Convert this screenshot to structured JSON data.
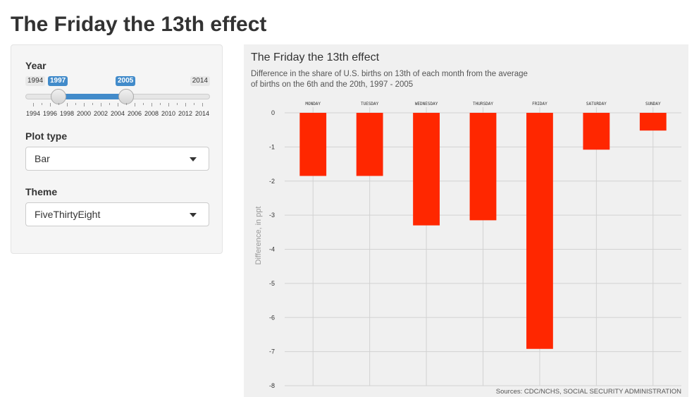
{
  "page": {
    "title": "The Friday the 13th effect"
  },
  "sidebar": {
    "year": {
      "label": "Year",
      "min": 1994,
      "max": 2014,
      "from": 1997,
      "to": 2005,
      "min_label": "1994",
      "max_label": "2014",
      "from_label": "1997",
      "to_label": "2005",
      "tick_labels": [
        "1994",
        "1996",
        "1998",
        "2000",
        "2002",
        "2004",
        "2006",
        "2008",
        "2010",
        "2012",
        "2014"
      ]
    },
    "plot_type": {
      "label": "Plot type",
      "value": "Bar"
    },
    "theme": {
      "label": "Theme",
      "value": "FiveThirtyEight"
    }
  },
  "chart_data": {
    "type": "bar",
    "title": "The Friday the 13th effect",
    "subtitle_line1": "Difference in the share of U.S. births on 13th of each month from the average",
    "subtitle_line2": "of births on the 6th and the 20th, 1997 - 2005",
    "ylabel": "Difference, in ppt",
    "xlabel": "",
    "source": "Sources: CDC/NCHS, SOCIAL SECURITY ADMINISTRATION",
    "categories": [
      "Monday",
      "Tuesday",
      "Wednesday",
      "Thursday",
      "Friday",
      "Saturday",
      "Sunday"
    ],
    "values": [
      -1.85,
      -1.85,
      -3.3,
      -3.15,
      -6.92,
      -1.08,
      -0.52
    ],
    "ylim": [
      -8,
      0
    ],
    "yticks": [
      "0",
      "-1",
      "-2",
      "-3",
      "-4",
      "-5",
      "-6",
      "-7",
      "-8"
    ],
    "grid": true,
    "bar_color": "#ff2700",
    "background": "#f0f0f0"
  }
}
